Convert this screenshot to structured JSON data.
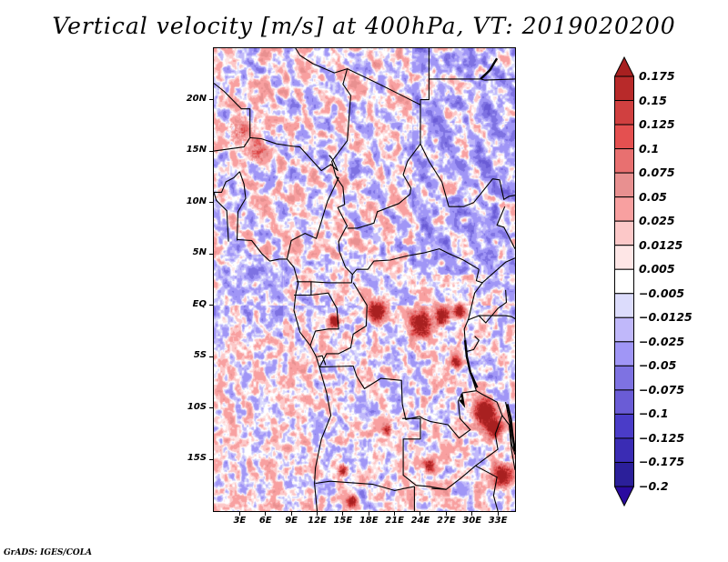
{
  "chart_data": {
    "type": "heatmap",
    "title": "Vertical velocity [m/s] at 400hPa, VT: 2019020200",
    "variable": "Vertical velocity",
    "units": "m/s",
    "level": "400hPa",
    "valid_time": "2019020200",
    "xlabel": "",
    "ylabel": "",
    "xlim": [
      0,
      35
    ],
    "ylim": [
      -20,
      25
    ],
    "x_ticks": [
      {
        "value": 3,
        "label": "3E"
      },
      {
        "value": 6,
        "label": "6E"
      },
      {
        "value": 9,
        "label": "9E"
      },
      {
        "value": 12,
        "label": "12E"
      },
      {
        "value": 15,
        "label": "15E"
      },
      {
        "value": 18,
        "label": "18E"
      },
      {
        "value": 21,
        "label": "21E"
      },
      {
        "value": 24,
        "label": "24E"
      },
      {
        "value": 27,
        "label": "27E"
      },
      {
        "value": 30,
        "label": "30E"
      },
      {
        "value": 33,
        "label": "33E"
      }
    ],
    "y_ticks": [
      {
        "value": 20,
        "label": "20N"
      },
      {
        "value": 15,
        "label": "15N"
      },
      {
        "value": 10,
        "label": "10N"
      },
      {
        "value": 5,
        "label": "5N"
      },
      {
        "value": 0,
        "label": "EQ"
      },
      {
        "value": -5,
        "label": "5S"
      },
      {
        "value": -10,
        "label": "10S"
      },
      {
        "value": -15,
        "label": "15S"
      }
    ],
    "colorbar": {
      "orientation": "vertical",
      "placement": "right",
      "extend": "both",
      "levels": [
        -0.2,
        -0.175,
        -0.125,
        -0.1,
        -0.075,
        -0.05,
        -0.025,
        -0.0125,
        -0.005,
        0.005,
        0.0125,
        0.025,
        0.05,
        0.075,
        0.1,
        0.125,
        0.15,
        0.175
      ],
      "labels": [
        "-0.2",
        "-0.175",
        "-0.125",
        "-0.1",
        "-0.075",
        "-0.05",
        "-0.025",
        "-0.0125",
        "-0.005",
        "0.005",
        "0.0125",
        "0.025",
        "0.05",
        "0.075",
        "0.1",
        "0.125",
        "0.15",
        "0.175"
      ],
      "colors": [
        "#2a0aa0",
        "#2b1f9a",
        "#3a2cb4",
        "#4a3cc8",
        "#6a5cd6",
        "#7e72e2",
        "#a096f6",
        "#c0b8fa",
        "#dcdcfc",
        "#ffffff",
        "#fee6e6",
        "#fcc8c8",
        "#f8a0a0",
        "#e89090",
        "#e87070",
        "#e45050",
        "#d04040",
        "#b82a2a",
        "#a82020"
      ]
    },
    "field_description": "Shaded vertical velocity over Central Africa (0-35E, 20S-25N); alternating NE-SW banded ascent/descent over the Sahel/Sahara; strong positive cells (>0.175) over the Congo Basin near EQ-2S, 18-29E, and near Lake Malawi ~10-12S 32-34E; predominantly negative over Sudan and the Gulf of Guinea."
  },
  "footer": "GrADS: IGES/COLA"
}
